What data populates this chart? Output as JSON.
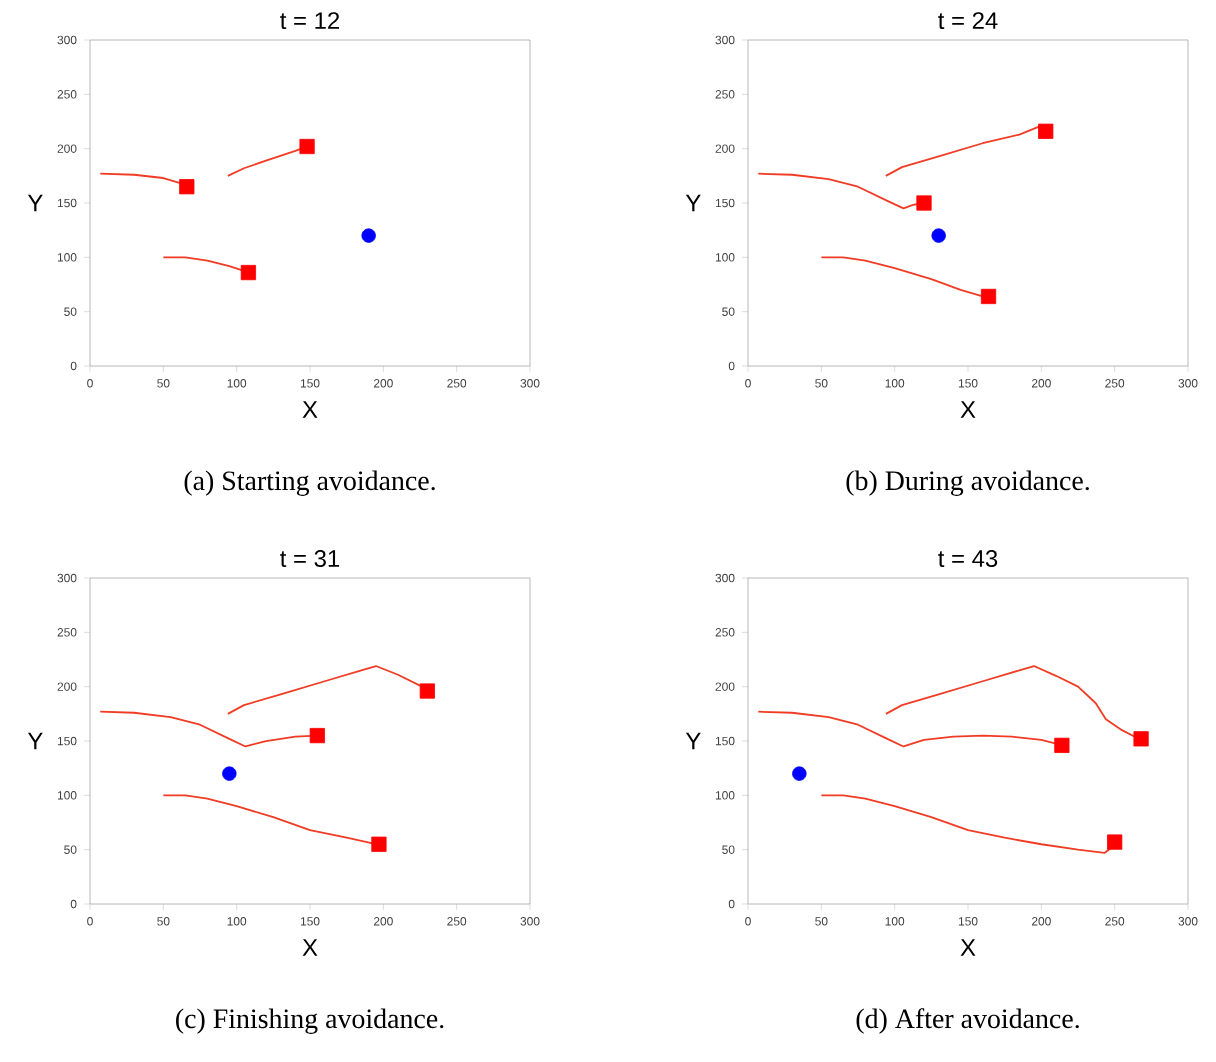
{
  "chart_data": [
    {
      "type": "line",
      "title": "t = 12",
      "xlabel": "X",
      "ylabel": "Y",
      "xlim": [
        0,
        300
      ],
      "ylim": [
        0,
        300
      ],
      "xticks": [
        0,
        50,
        100,
        150,
        200,
        250,
        300
      ],
      "yticks": [
        0,
        50,
        100,
        150,
        200,
        250,
        300
      ],
      "grid": false,
      "annotations": [
        "(a) Starting avoidance."
      ],
      "series": [
        {
          "color": "#f03c24",
          "marker": "none",
          "line_style": "solid",
          "x": [
            7,
            30,
            50,
            65
          ],
          "values": [
            177,
            176,
            173,
            167
          ]
        },
        {
          "color": "#f03c24",
          "marker": "none",
          "line_style": "solid",
          "x": [
            94,
            105,
            120,
            140,
            146
          ],
          "values": [
            175,
            182,
            189,
            198,
            201
          ]
        },
        {
          "color": "#f03c24",
          "marker": "none",
          "line_style": "solid",
          "x": [
            50,
            65,
            80,
            95,
            106
          ],
          "values": [
            100,
            100,
            97,
            92,
            87
          ]
        },
        {
          "type": "scatter",
          "color": "#ff0000",
          "marker": "square",
          "x": [
            66,
            148,
            108
          ],
          "values": [
            165,
            202,
            86
          ]
        },
        {
          "type": "scatter",
          "color": "#0000ff",
          "marker": "circle",
          "x": [
            190
          ],
          "values": [
            120
          ]
        }
      ]
    },
    {
      "type": "line",
      "title": "t = 24",
      "xlabel": "X",
      "ylabel": "Y",
      "xlim": [
        0,
        300
      ],
      "ylim": [
        0,
        300
      ],
      "xticks": [
        0,
        50,
        100,
        150,
        200,
        250,
        300
      ],
      "yticks": [
        0,
        50,
        100,
        150,
        200,
        250,
        300
      ],
      "grid": false,
      "annotations": [
        "(b) During avoidance."
      ],
      "series": [
        {
          "color": "#f03c24",
          "marker": "none",
          "line_style": "solid",
          "x": [
            7,
            30,
            55,
            75,
            95,
            106,
            112,
            118
          ],
          "values": [
            177,
            176,
            172,
            165,
            152,
            145,
            148,
            150
          ]
        },
        {
          "color": "#f03c24",
          "marker": "none",
          "line_style": "solid",
          "x": [
            94,
            105,
            130,
            160,
            185,
            198,
            203
          ],
          "values": [
            175,
            183,
            193,
            205,
            213,
            220,
            216
          ]
        },
        {
          "color": "#f03c24",
          "marker": "none",
          "line_style": "solid",
          "x": [
            50,
            65,
            80,
            100,
            125,
            145,
            160
          ],
          "values": [
            100,
            100,
            97,
            90,
            80,
            70,
            64
          ]
        },
        {
          "type": "scatter",
          "color": "#ff0000",
          "marker": "square",
          "x": [
            120,
            203,
            164
          ],
          "values": [
            150,
            216,
            64
          ]
        },
        {
          "type": "scatter",
          "color": "#0000ff",
          "marker": "circle",
          "x": [
            130
          ],
          "values": [
            120
          ]
        }
      ]
    },
    {
      "type": "line",
      "title": "t = 31",
      "xlabel": "X",
      "ylabel": "Y",
      "xlim": [
        0,
        300
      ],
      "ylim": [
        0,
        300
      ],
      "xticks": [
        0,
        50,
        100,
        150,
        200,
        250,
        300
      ],
      "yticks": [
        0,
        50,
        100,
        150,
        200,
        250,
        300
      ],
      "grid": false,
      "annotations": [
        "(c) Finishing avoidance."
      ],
      "series": [
        {
          "color": "#f03c24",
          "marker": "none",
          "line_style": "solid",
          "x": [
            7,
            30,
            55,
            75,
            95,
            106,
            120,
            140,
            155
          ],
          "values": [
            177,
            176,
            172,
            165,
            152,
            145,
            150,
            154,
            155
          ]
        },
        {
          "color": "#f03c24",
          "marker": "none",
          "line_style": "solid",
          "x": [
            94,
            105,
            130,
            160,
            185,
            195,
            210,
            225
          ],
          "values": [
            175,
            183,
            193,
            205,
            215,
            219,
            211,
            201
          ]
        },
        {
          "color": "#f03c24",
          "marker": "none",
          "line_style": "solid",
          "x": [
            50,
            65,
            80,
            100,
            125,
            150,
            175,
            195
          ],
          "values": [
            100,
            100,
            97,
            90,
            80,
            68,
            61,
            55
          ]
        },
        {
          "type": "scatter",
          "color": "#ff0000",
          "marker": "square",
          "x": [
            155,
            230,
            197
          ],
          "values": [
            155,
            196,
            55
          ]
        },
        {
          "type": "scatter",
          "color": "#0000ff",
          "marker": "circle",
          "x": [
            95
          ],
          "values": [
            120
          ]
        }
      ]
    },
    {
      "type": "line",
      "title": "t = 43",
      "xlabel": "X",
      "ylabel": "Y",
      "xlim": [
        0,
        300
      ],
      "ylim": [
        0,
        300
      ],
      "xticks": [
        0,
        50,
        100,
        150,
        200,
        250,
        300
      ],
      "yticks": [
        0,
        50,
        100,
        150,
        200,
        250,
        300
      ],
      "grid": false,
      "annotations": [
        "(d) After avoidance."
      ],
      "series": [
        {
          "color": "#f03c24",
          "marker": "none",
          "line_style": "solid",
          "x": [
            7,
            30,
            55,
            75,
            95,
            106,
            120,
            140,
            160,
            180,
            200,
            212
          ],
          "values": [
            177,
            176,
            172,
            165,
            152,
            145,
            151,
            154,
            155,
            154,
            151,
            147
          ]
        },
        {
          "color": "#f03c24",
          "marker": "none",
          "line_style": "solid",
          "x": [
            94,
            105,
            130,
            160,
            185,
            195,
            210,
            225,
            237,
            244,
            255,
            265
          ],
          "values": [
            175,
            183,
            193,
            205,
            215,
            219,
            210,
            200,
            185,
            170,
            160,
            153
          ]
        },
        {
          "color": "#f03c24",
          "marker": "none",
          "line_style": "solid",
          "x": [
            50,
            65,
            80,
            100,
            125,
            150,
            175,
            200,
            225,
            243,
            248
          ],
          "values": [
            100,
            100,
            97,
            90,
            80,
            68,
            61,
            55,
            50,
            47,
            52
          ]
        },
        {
          "type": "scatter",
          "color": "#ff0000",
          "marker": "square",
          "x": [
            214,
            268,
            250
          ],
          "values": [
            146,
            152,
            57
          ]
        },
        {
          "type": "scatter",
          "color": "#0000ff",
          "marker": "circle",
          "x": [
            35
          ],
          "values": [
            120
          ]
        }
      ]
    }
  ]
}
